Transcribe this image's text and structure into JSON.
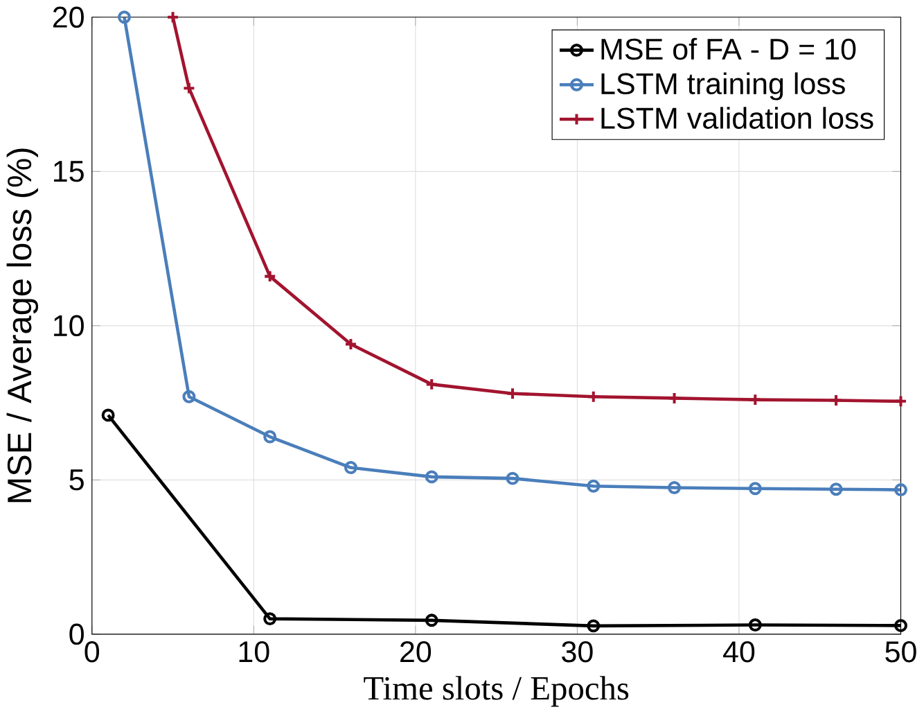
{
  "chart_data": {
    "type": "line",
    "xlabel": "Time slots / Epochs",
    "ylabel": "MSE / Average loss (%)",
    "xlim": [
      0,
      50
    ],
    "ylim": [
      0,
      20
    ],
    "xticks": [
      0,
      10,
      20,
      30,
      40,
      50
    ],
    "yticks": [
      0,
      5,
      10,
      15,
      20
    ],
    "grid": true,
    "legend": "top right",
    "line_style": "solid",
    "series": [
      {
        "name": "MSE of FA - D = 10",
        "color": "#000000",
        "marker": "circle",
        "x": [
          1,
          11,
          21,
          31,
          41,
          50
        ],
        "values": [
          7.1,
          0.5,
          0.45,
          0.27,
          0.3,
          0.28
        ]
      },
      {
        "name": "LSTM training loss",
        "color": "#4a7ebb",
        "marker": "circle",
        "x": [
          2,
          6,
          11,
          16,
          21,
          26,
          31,
          36,
          41,
          46,
          50
        ],
        "values": [
          20,
          7.7,
          6.4,
          5.4,
          5.1,
          5.05,
          4.8,
          4.75,
          4.72,
          4.7,
          4.68
        ]
      },
      {
        "name": "LSTM validation loss",
        "color": "#a2142f",
        "marker": "cross",
        "x": [
          5,
          6,
          11,
          16,
          21,
          26,
          31,
          36,
          41,
          46,
          50
        ],
        "values": [
          20,
          17.7,
          11.6,
          9.4,
          8.1,
          7.8,
          7.7,
          7.65,
          7.6,
          7.58,
          7.55
        ]
      }
    ]
  }
}
